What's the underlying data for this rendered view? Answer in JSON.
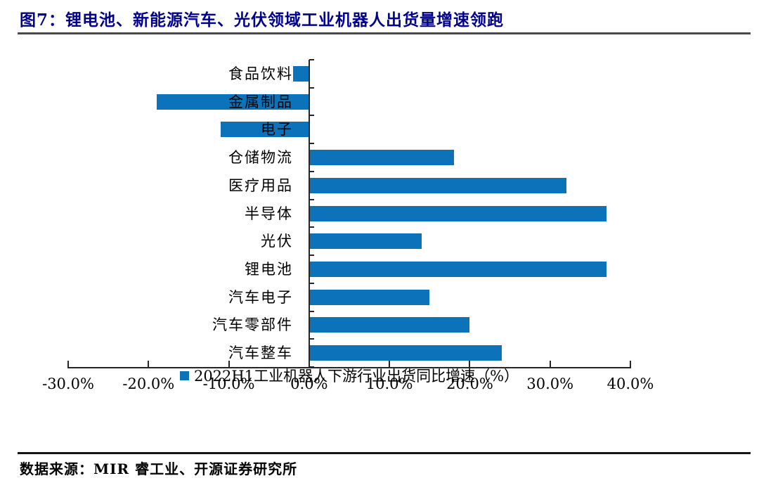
{
  "title": {
    "label": "图7：锂电池、新能源汽车、光伏领域工业机器人出货量增速领跑"
  },
  "legend": {
    "marker": "square",
    "label": "2022H1工业机器人下游行业出货同比增速（%）"
  },
  "source": {
    "label": "数据来源：MIR 睿工业、开源证券研究所"
  },
  "colors": {
    "bar": "#0C72B9",
    "title": "#00008B",
    "axis": "#262626",
    "rule_top": "#4a4a4a",
    "rule_bottom": "#141414"
  },
  "chart_data": {
    "type": "bar",
    "orientation": "horizontal",
    "title": "图7：锂电池、新能源汽车、光伏领域工业机器人出货量增速领跑",
    "series_name": "2022H1工业机器人下游行业出货同比增速（%）",
    "categories": [
      "食品饮料",
      "金属制品",
      "电子",
      "仓储物流",
      "医疗用品",
      "半导体",
      "光伏",
      "锂电池",
      "汽车电子",
      "汽车零部件",
      "汽车整车"
    ],
    "values": [
      -2,
      -19,
      -11,
      18,
      32,
      37,
      14,
      37,
      15,
      20,
      24
    ],
    "unit": "%",
    "xlim": [
      -30,
      40
    ],
    "x_tick_values": [
      -30,
      -20,
      -10,
      0,
      10,
      20,
      30,
      40
    ],
    "x_tick_labels": [
      "-30.0%",
      "-20.0%",
      "-10.0%",
      "0.0%",
      "10.0%",
      "20.0%",
      "30.0%",
      "40.0%"
    ],
    "grid": false,
    "legend_position": "bottom"
  }
}
